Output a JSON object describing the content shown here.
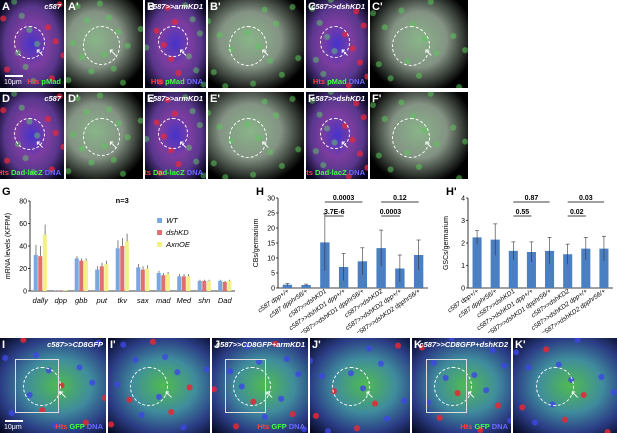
{
  "panels_top": [
    {
      "label": "A",
      "genotype": "c587",
      "stain": [
        {
          "t": "Hts ",
          "c": "#ff4040"
        },
        {
          "t": "pMad",
          "c": "#40ff40"
        }
      ],
      "type": "merge",
      "scale": "10μm"
    },
    {
      "label": "A'",
      "genotype": "",
      "stain": [],
      "type": "green"
    },
    {
      "label": "B",
      "genotype": "c587>>armKD1",
      "stain": [
        {
          "t": "Hts ",
          "c": "#ff4040"
        },
        {
          "t": "pMad ",
          "c": "#40ff40"
        },
        {
          "t": "DNA",
          "c": "#6a6aff"
        }
      ],
      "type": "merge"
    },
    {
      "label": "B'",
      "genotype": "",
      "stain": [],
      "type": "green"
    },
    {
      "label": "C",
      "genotype": "c587>>dshKD1",
      "stain": [
        {
          "t": "Hts ",
          "c": "#ff4040"
        },
        {
          "t": "pMad ",
          "c": "#40ff40"
        },
        {
          "t": "DNA",
          "c": "#6a6aff"
        }
      ],
      "type": "merge"
    },
    {
      "label": "C'",
      "genotype": "",
      "stain": [],
      "type": "green"
    }
  ],
  "panels_mid": [
    {
      "label": "D",
      "genotype": "c587",
      "stain": [
        {
          "t": "Hts ",
          "c": "#ff4040"
        },
        {
          "t": "Dad-lacZ ",
          "c": "#40ff40"
        },
        {
          "t": "DNA",
          "c": "#6a6aff"
        }
      ],
      "type": "merge"
    },
    {
      "label": "D'",
      "genotype": "",
      "stain": [],
      "type": "green"
    },
    {
      "label": "E",
      "genotype": "c587>>armKD1",
      "stain": [
        {
          "t": "Hts ",
          "c": "#ff4040"
        },
        {
          "t": "Dad-lacZ ",
          "c": "#40ff40"
        },
        {
          "t": "DNA",
          "c": "#6a6aff"
        }
      ],
      "type": "merge"
    },
    {
      "label": "E'",
      "genotype": "",
      "stain": [],
      "type": "green"
    },
    {
      "label": "F",
      "genotype": "c587>>dshKD1",
      "stain": [
        {
          "t": "Hts ",
          "c": "#ff4040"
        },
        {
          "t": "Dad-lacZ ",
          "c": "#40ff40"
        },
        {
          "t": "DNA",
          "c": "#6a6aff"
        }
      ],
      "type": "merge"
    },
    {
      "label": "F'",
      "genotype": "",
      "stain": [],
      "type": "green"
    }
  ],
  "panels_bottom": [
    {
      "label": "I",
      "genotype": "c587>>CD8GFP",
      "stain": [
        {
          "t": "Hts ",
          "c": "#ff4040"
        },
        {
          "t": "GFP ",
          "c": "#40ff40"
        },
        {
          "t": "DNA",
          "c": "#6a6aff"
        }
      ],
      "scale": "10μm"
    },
    {
      "label": "I'",
      "genotype": "",
      "stain": []
    },
    {
      "label": "J",
      "genotype": "c587>>CD8GFP+armKD1",
      "stain": [
        {
          "t": "Hts ",
          "c": "#ff4040"
        },
        {
          "t": "GFP ",
          "c": "#40ff40"
        },
        {
          "t": "DNA",
          "c": "#6a6aff"
        }
      ]
    },
    {
      "label": "J'",
      "genotype": "",
      "stain": []
    },
    {
      "label": "K",
      "genotype": "c587>>CD8GFP+dshKD2",
      "stain": [
        {
          "t": "Hts ",
          "c": "#ff4040"
        },
        {
          "t": "GFP ",
          "c": "#40ff40"
        },
        {
          "t": "DNA",
          "c": "#6a6aff"
        }
      ]
    },
    {
      "label": "K'",
      "genotype": "",
      "stain": []
    }
  ],
  "chart_data": [
    {
      "label": "G",
      "type": "bar",
      "ylabel": "mRNA levels (KFPM)",
      "ylim": [
        0,
        80
      ],
      "yticks": [
        0,
        20,
        40,
        60,
        80
      ],
      "annotation": "n=3",
      "categories": [
        "dally",
        "dpp",
        "gbb",
        "put",
        "tkv",
        "sax",
        "mad",
        "Med",
        "shn",
        "Dad"
      ],
      "series": [
        {
          "name": "WT",
          "color": "#7aa7e0",
          "values": [
            32,
            0.5,
            29,
            19,
            38,
            21,
            16,
            13,
            9,
            9
          ]
        },
        {
          "name": "dshKD",
          "color": "#e07070",
          "values": [
            31,
            0.5,
            27,
            22,
            40,
            19,
            14,
            13,
            9,
            8
          ]
        },
        {
          "name": "AxnOE",
          "color": "#f3f08a",
          "values": [
            50,
            0.5,
            27,
            24,
            44,
            20,
            15,
            13,
            9,
            9
          ]
        }
      ],
      "errors": [
        9,
        0.3,
        2,
        3,
        7,
        3,
        2,
        2,
        1,
        1
      ]
    },
    {
      "label": "H",
      "type": "bar",
      "ylabel": "CBs/germarium",
      "ylim": [
        0,
        30
      ],
      "yticks": [
        0,
        5,
        10,
        15,
        20,
        25,
        30
      ],
      "categories": [
        "c587 dpp+/+",
        "c587 dpphr56/+",
        "c587>>dshKD1",
        "c587>>dshKD1 dpp+/+",
        "c587>>dshKD1 dpphr56/+",
        "c587>>dshKD2",
        "c587>>dshKD2 dpp+/+",
        "c587>>dshKD2 dpphr56/+"
      ],
      "values": [
        1.1,
        1.0,
        15.2,
        7.0,
        8.9,
        13.3,
        6.5,
        11.0
      ],
      "errors": [
        0.4,
        0.3,
        9.5,
        4.5,
        4.5,
        6.0,
        4.5,
        5.0
      ],
      "stats": [
        {
          "text": "0.0003",
          "from": 2,
          "to": 4,
          "level": 0
        },
        {
          "text": "3.7E-6",
          "from": 2,
          "to": 3,
          "level": 1
        },
        {
          "text": "0.12",
          "from": 5,
          "to": 7,
          "level": 0
        },
        {
          "text": "0.0003",
          "from": 5,
          "to": 6,
          "level": 1
        }
      ],
      "color": "#4a7fc1"
    },
    {
      "label": "H'",
      "type": "bar",
      "ylabel": "GSCs/germarium",
      "ylim": [
        0,
        4
      ],
      "yticks": [
        0,
        1,
        2,
        3,
        4
      ],
      "categories": [
        "c587 dpp+/+",
        "c587 dpphr56/+",
        "c587>>dshKD1",
        "c587>>dshKD1 dpp+/+",
        "c587>>dshKD1 dpphr56/+",
        "c587>>dshKD2",
        "c587>>dshKD2 dpp+/+",
        "c587>>dshKD2 dpphr56/+"
      ],
      "values": [
        2.25,
        2.15,
        1.65,
        1.6,
        1.65,
        1.5,
        1.75,
        1.75
      ],
      "errors": [
        0.3,
        0.7,
        0.4,
        0.45,
        0.6,
        0.45,
        0.5,
        0.55
      ],
      "stats": [
        {
          "text": "0.87",
          "from": 2,
          "to": 4,
          "level": 0
        },
        {
          "text": "0.55",
          "from": 2,
          "to": 3,
          "level": 1
        },
        {
          "text": "0.03",
          "from": 5,
          "to": 7,
          "level": 0
        },
        {
          "text": "0.02",
          "from": 5,
          "to": 6,
          "level": 1
        }
      ],
      "color": "#4a7fc1"
    }
  ]
}
